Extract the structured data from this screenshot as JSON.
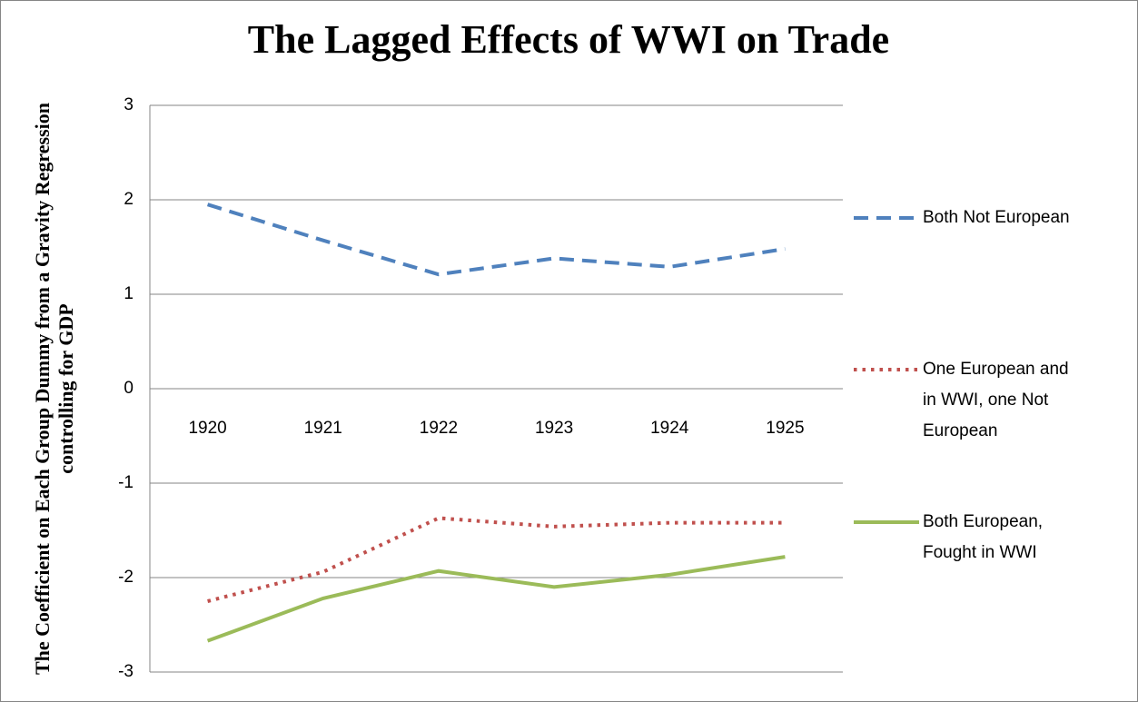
{
  "chart_data": {
    "type": "line",
    "title": "The Lagged Effects of WWI on Trade",
    "y_label": "The Coefficient on Each Group Dummy from a Gravity Regression controlling for GDP",
    "categories": [
      "1920",
      "1921",
      "1922",
      "1923",
      "1924",
      "1925"
    ],
    "series": [
      {
        "name": "Both Not European",
        "color": "#4f81bd",
        "dash": "dashed",
        "values": [
          1.95,
          1.57,
          1.21,
          1.38,
          1.29,
          1.48
        ]
      },
      {
        "name": "One European and in WWI, one Not European",
        "color": "#c0504d",
        "dash": "dotted",
        "values": [
          -2.25,
          -1.94,
          -1.37,
          -1.46,
          -1.42,
          -1.42
        ]
      },
      {
        "name": "Both European, Fought in WWI",
        "color": "#9bbb59",
        "dash": "solid",
        "values": [
          -2.67,
          -2.22,
          -1.93,
          -2.1,
          -1.97,
          -1.78
        ]
      }
    ],
    "ylim": [
      -3,
      3
    ],
    "yticks": [
      -3,
      -2,
      -1,
      0,
      1,
      2,
      3
    ],
    "grid": true,
    "legend": "right"
  }
}
